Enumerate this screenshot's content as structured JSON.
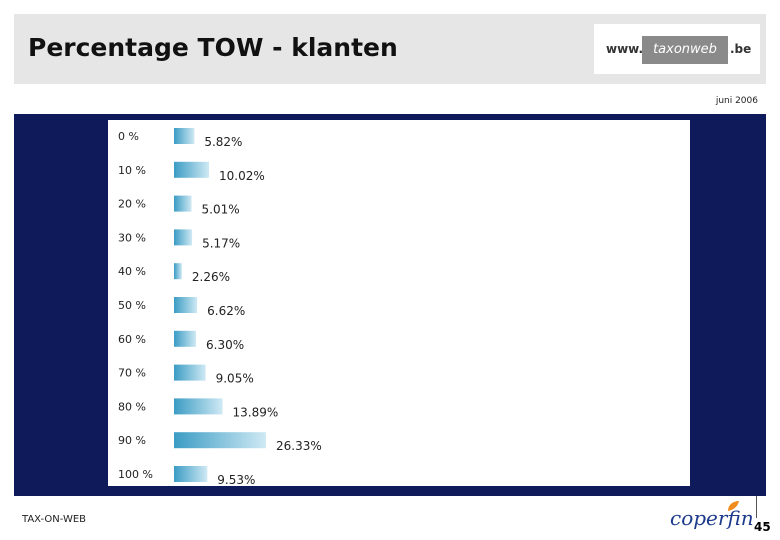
{
  "header": {
    "title": "Percentage TOW - klanten",
    "logo_prefix": "www.",
    "logo_middle": "taxonweb",
    "logo_suffix": ".be"
  },
  "date": "juni 2006",
  "footer": {
    "left_text": "TAX-ON-WEB",
    "brand": "coperfin",
    "page_number": "45"
  },
  "colors": {
    "navy": "#0e1a5a",
    "bar_dark": "#3b9cc4",
    "bar_light": "#cfe9f4"
  },
  "chart_data": {
    "type": "bar",
    "orientation": "horizontal",
    "categories": [
      "0 %",
      "10 %",
      "20 %",
      "30 %",
      "40 %",
      "50 %",
      "60 %",
      "70 %",
      "80 %",
      "90 %",
      "100 %"
    ],
    "values": [
      5.82,
      10.02,
      5.01,
      5.17,
      2.26,
      6.62,
      6.3,
      9.05,
      13.89,
      26.33,
      9.53
    ],
    "value_labels": [
      "5.82%",
      "10.02%",
      "5.01%",
      "5.17%",
      "2.26%",
      "6.62%",
      "6.30%",
      "9.05%",
      "13.89%",
      "26.33%",
      "9.53%"
    ],
    "title": "",
    "xlabel": "",
    "ylabel": "",
    "xlim": [
      0,
      26.33
    ],
    "grid": false,
    "legend": "none"
  }
}
